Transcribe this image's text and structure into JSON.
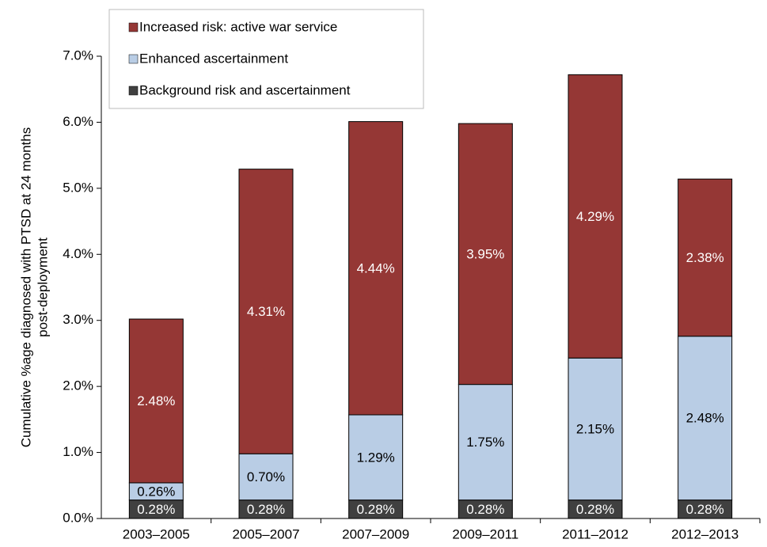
{
  "chart_data": {
    "type": "stacked_bar",
    "y_label": [
      "Cumulative %age diagnosed  with PTSD at 24 months",
      "post-deployment"
    ],
    "categories": [
      "2003–2005",
      "2005–2007",
      "2007–2009",
      "2009–2011",
      "2011–2012",
      "2012–2013"
    ],
    "series": [
      {
        "name": "Background risk and ascertainment",
        "color": "#404040",
        "label_color": "#ffffff",
        "values": [
          0.28,
          0.28,
          0.28,
          0.28,
          0.28,
          0.28
        ],
        "value_labels": [
          "0.28%",
          "0.28%",
          "0.28%",
          "0.28%",
          "0.28%",
          "0.28%"
        ]
      },
      {
        "name": "Enhanced ascertainment",
        "color": "#b9cde5",
        "label_color": "#000000",
        "values": [
          0.26,
          0.7,
          1.29,
          1.75,
          2.15,
          2.48
        ],
        "value_labels": [
          "0.26%",
          "0.70%",
          "1.29%",
          "1.75%",
          "2.15%",
          "2.48%"
        ]
      },
      {
        "name": "Increased risk: active war service",
        "color": "#953735",
        "label_color": "#ffffff",
        "values": [
          2.48,
          4.31,
          4.44,
          3.95,
          4.29,
          2.38
        ],
        "value_labels": [
          "2.48%",
          "4.31%",
          "4.44%",
          "3.95%",
          "4.29%",
          "2.38%"
        ]
      }
    ],
    "ylim": [
      0,
      7
    ],
    "yticks": [
      {
        "value": 0,
        "label": "0.0%"
      },
      {
        "value": 1,
        "label": "1.0%"
      },
      {
        "value": 2,
        "label": "2.0%"
      },
      {
        "value": 3,
        "label": "3.0%"
      },
      {
        "value": 4,
        "label": "4.0%"
      },
      {
        "value": 5,
        "label": "5.0%"
      },
      {
        "value": 6,
        "label": "6.0%"
      },
      {
        "value": 7,
        "label": "7.0%"
      }
    ],
    "grid": false
  }
}
